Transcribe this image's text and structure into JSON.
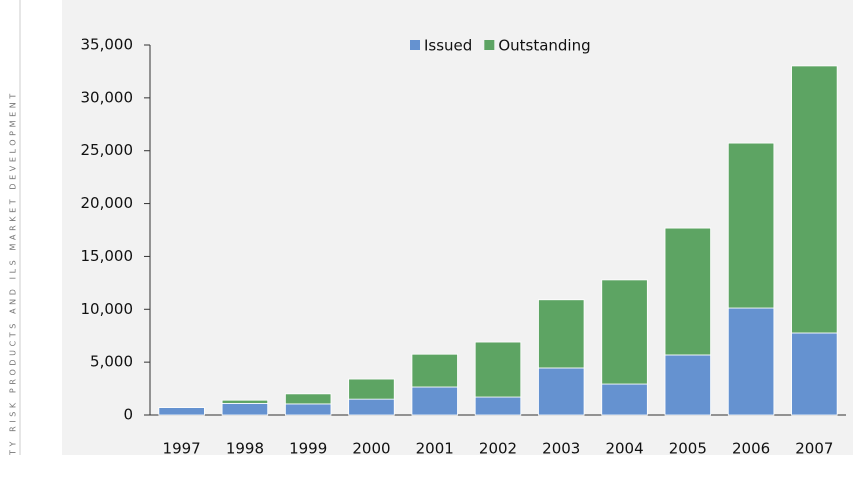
{
  "sidebar": "TY RISK PRODUCTS AND ILS MARKET DEVELOPMENT",
  "chart_data": {
    "type": "stacked_bar",
    "categories": [
      "1997",
      "1998",
      "1999",
      "2000",
      "2001",
      "2002",
      "2003",
      "2004",
      "2005",
      "2006",
      "2007"
    ],
    "series": [
      {
        "name": "Issued",
        "color": "#6592d0",
        "values": [
          700,
          1100,
          1050,
          1500,
          2650,
          1700,
          4450,
          2930,
          5680,
          10120,
          7760
        ]
      },
      {
        "name": "Outstanding",
        "color": "#5da463",
        "values": [
          0,
          300,
          950,
          1900,
          3100,
          5200,
          6450,
          9850,
          12000,
          15600,
          25260
        ]
      }
    ],
    "ylim": [
      0,
      35000
    ],
    "yticks": [
      0,
      {
        "value": 5000,
        "label": "5,000"
      },
      {
        "value": 10000,
        "label": "10,000"
      },
      {
        "value": 15000,
        "label": "15,000"
      },
      {
        "value": 20000,
        "label": "20,000"
      },
      {
        "value": 25000,
        "label": "25,000"
      },
      {
        "value": 30000,
        "label": "30,000"
      },
      {
        "value": 35000,
        "label": "35,000"
      }
    ],
    "legend": "top"
  }
}
